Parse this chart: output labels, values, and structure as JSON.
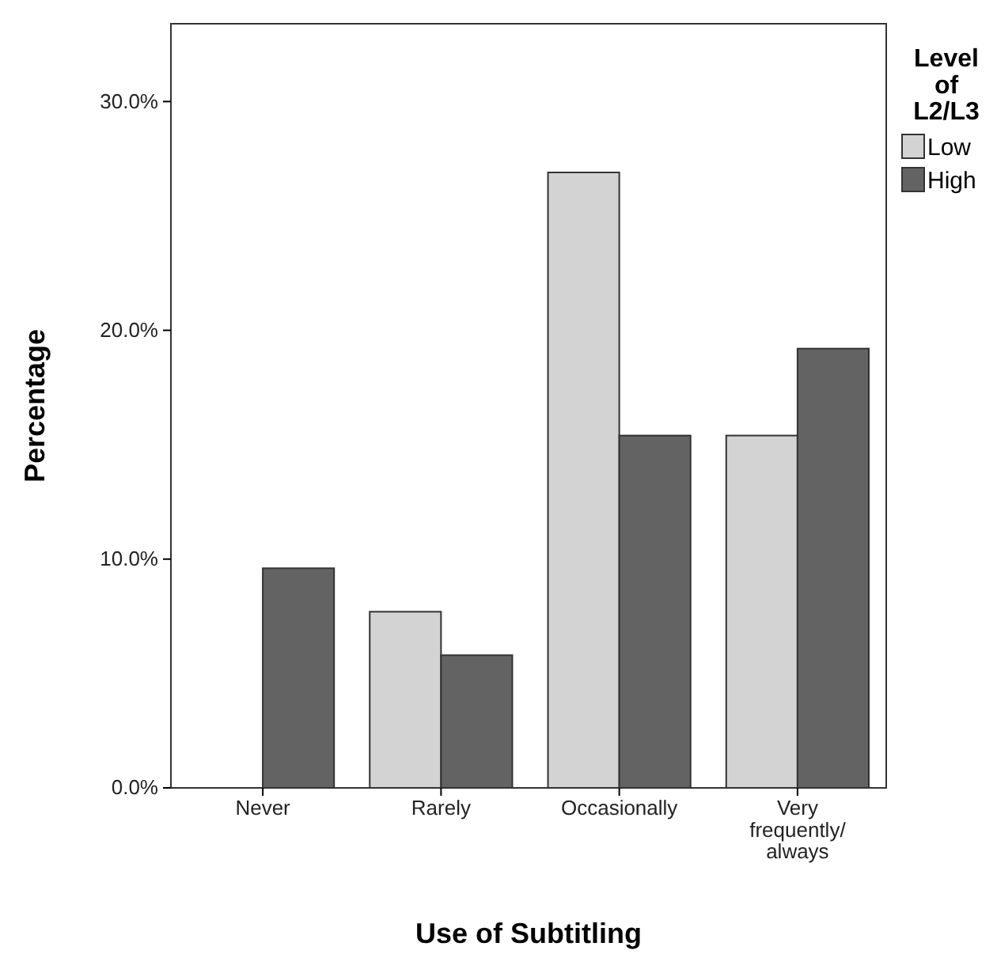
{
  "chart_data": {
    "type": "bar",
    "xlabel": "Use of Subtitling",
    "ylabel": "Percentage",
    "legend_title": "Level of L2/L3",
    "categories": [
      "Never",
      "Rarely",
      "Occasionally",
      "Very frequently/ always"
    ],
    "series": [
      {
        "name": "Low",
        "color": "#d3d3d3",
        "values": [
          0,
          7.7,
          26.9,
          15.4
        ]
      },
      {
        "name": "High",
        "color": "#636363",
        "values": [
          9.6,
          5.8,
          15.4,
          19.2
        ]
      }
    ],
    "ylim": [
      0,
      33.4
    ],
    "yticks": [
      {
        "value": 0,
        "label": "0.0%"
      },
      {
        "value": 10,
        "label": "10.0%"
      },
      {
        "value": 20,
        "label": "20.0%"
      },
      {
        "value": 30,
        "label": "30.0%"
      }
    ],
    "legend": "right"
  }
}
